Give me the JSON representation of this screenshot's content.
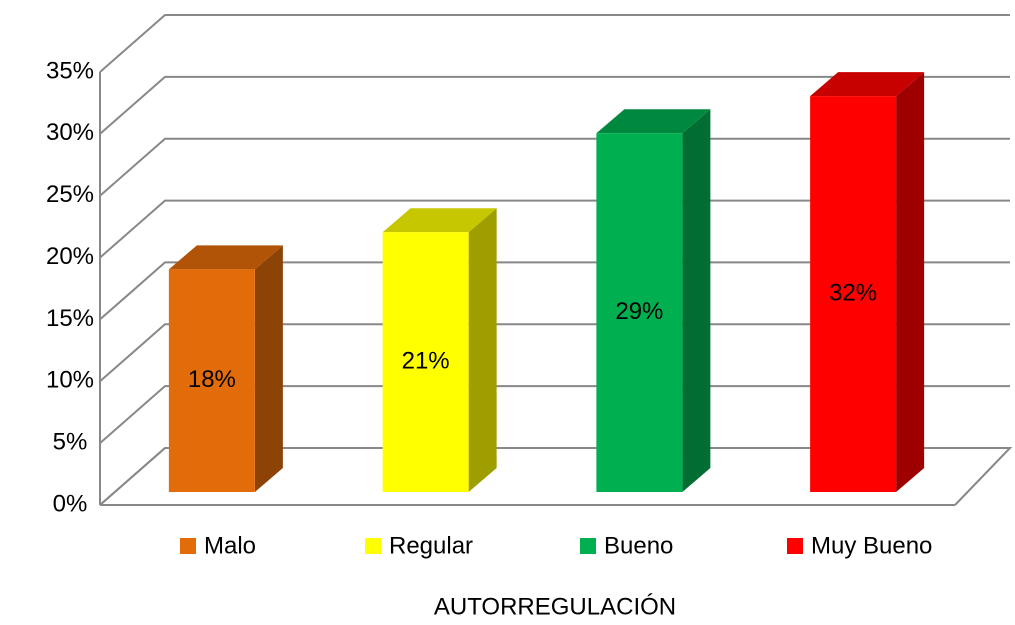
{
  "chart_data": {
    "type": "bar3d",
    "x_label": "AUTORREGULACIÓN",
    "categories": [
      "Malo",
      "Regular",
      "Bueno",
      "Muy Bueno"
    ],
    "values": [
      18,
      21,
      29,
      32
    ],
    "value_labels": [
      "18%",
      "21%",
      "29%",
      "32%"
    ],
    "colors": [
      "#e36c0a",
      "#ffff00",
      "#00b050",
      "#ff0000"
    ],
    "ylim": [
      0,
      35
    ],
    "yticks": [
      {
        "value": 0,
        "label": "0%"
      },
      {
        "value": 5,
        "label": "5%"
      },
      {
        "value": 10,
        "label": "10%"
      },
      {
        "value": 15,
        "label": "15%"
      },
      {
        "value": 20,
        "label": "20%"
      },
      {
        "value": 25,
        "label": "25%"
      },
      {
        "value": 30,
        "label": "30%"
      },
      {
        "value": 35,
        "label": "35%"
      }
    ],
    "grid": true,
    "legend": "bottom"
  }
}
